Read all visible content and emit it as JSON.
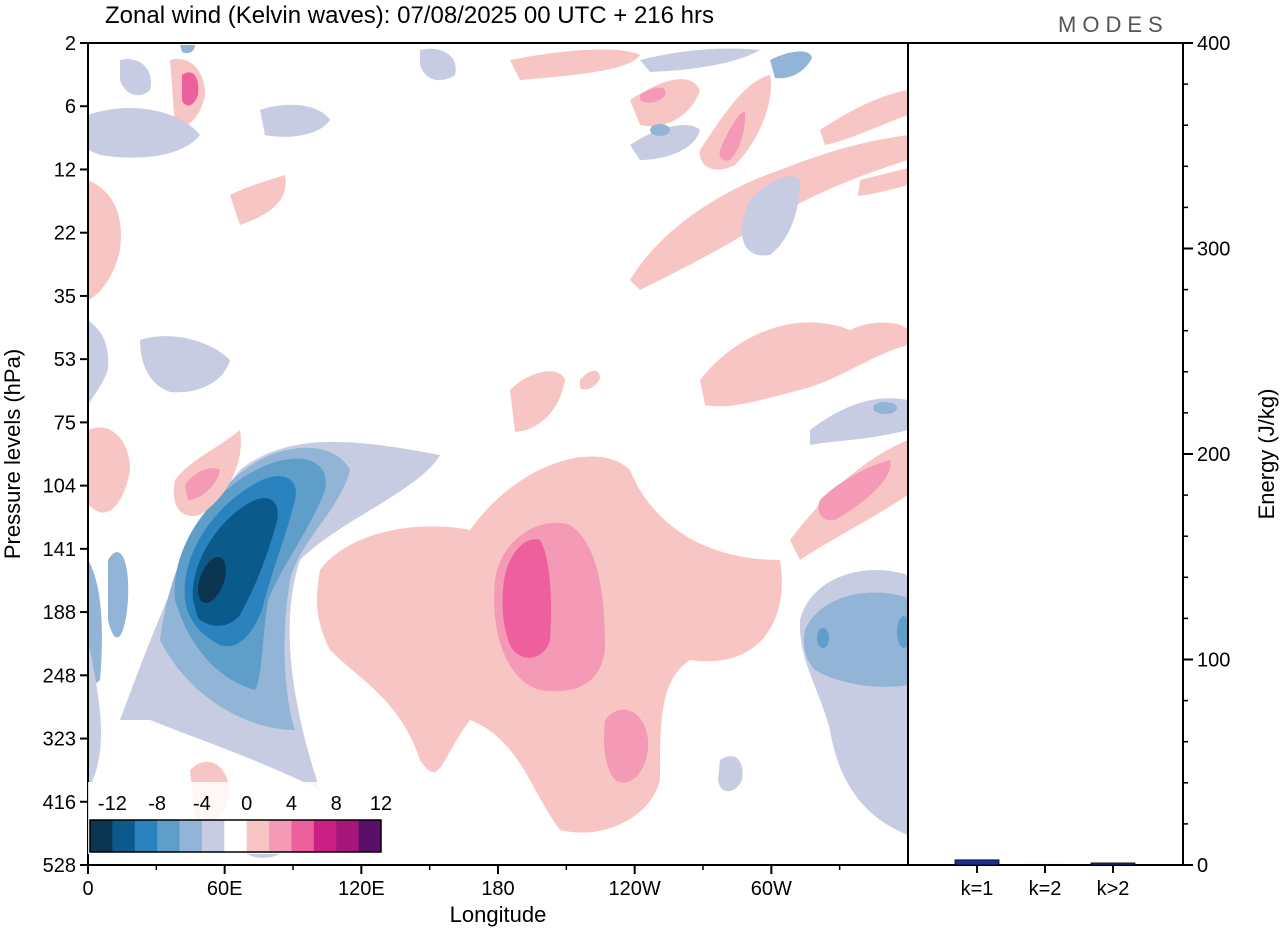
{
  "title": "Zonal wind (Kelvin waves):  07/08/2025  00 UTC  + 216 hrs",
  "logo": "MODES",
  "chart_data": [
    {
      "type": "heatmap",
      "variable": "Zonal wind (Kelvin waves)",
      "xlabel": "Longitude",
      "ylabel": "Pressure levels (hPa)",
      "x_ticks": [
        "0",
        "60E",
        "120E",
        "180",
        "120W",
        "60W"
      ],
      "x_tick_values": [
        0,
        60,
        120,
        180,
        240,
        300
      ],
      "xlim": [
        0,
        360
      ],
      "y_ticks": [
        "2",
        "6",
        "12",
        "22",
        "35",
        "53",
        "75",
        "104",
        "141",
        "188",
        "248",
        "323",
        "416",
        "528"
      ],
      "y_order": "top-to-bottom",
      "colorbar": {
        "tick_labels": [
          "-12",
          "-8",
          "-4",
          "0",
          "4",
          "8",
          "12"
        ],
        "levels": [
          -14,
          -12,
          -10,
          -8,
          -6,
          -4,
          -2,
          2,
          4,
          6,
          8,
          10,
          12,
          14
        ],
        "colors": [
          "#0b3550",
          "#0b5a8c",
          "#2a82bf",
          "#5f9ec9",
          "#92b4d6",
          "#c8cce2",
          "#ffffff",
          "#f7c6c4",
          "#f49ab6",
          "#ed5f9d",
          "#cc1f86",
          "#a6157a",
          "#5a0f69"
        ]
      },
      "features": [
        {
          "sign": "negative",
          "level_min": -14,
          "center_lon": 55,
          "center_level": "141-188"
        },
        {
          "sign": "positive",
          "level_max": 8,
          "center_lon": 190,
          "center_level": "141-248"
        },
        {
          "sign": "negative",
          "level_min": -8,
          "center_lon": 345,
          "center_level": "188"
        },
        {
          "sign": "positive",
          "level_max": 6,
          "center_lon": 240,
          "center_level": "323"
        }
      ]
    },
    {
      "type": "bar",
      "categories": [
        "k=1",
        "k=2",
        "k>2"
      ],
      "values": [
        2.5,
        0.3,
        1.0
      ],
      "ylabel": "Energy (J/kg)",
      "ylim": [
        0,
        400
      ],
      "y_ticks": [
        "0",
        "100",
        "200",
        "300",
        "400"
      ],
      "y_tick_values": [
        0,
        100,
        200,
        300,
        400
      ],
      "bar_colors": [
        "#1e2d96",
        "#1e2d96",
        "#1e2d96"
      ]
    }
  ]
}
